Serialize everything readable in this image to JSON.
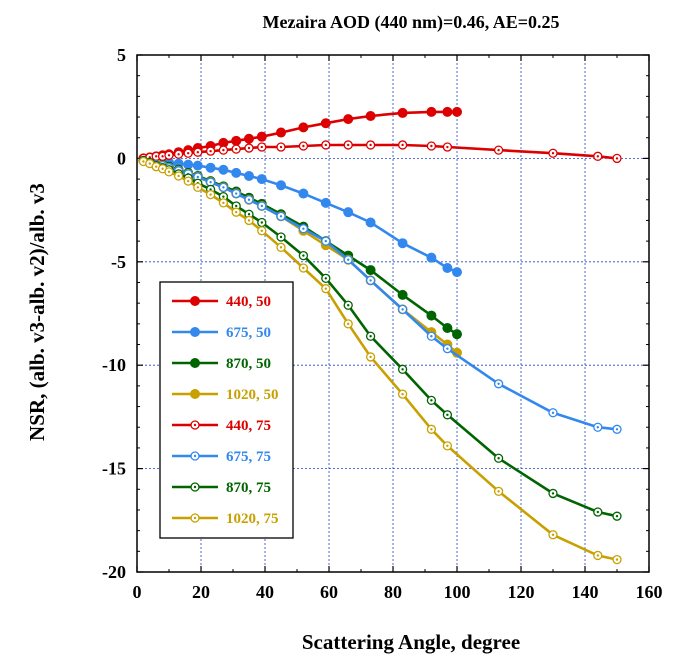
{
  "chart_data": {
    "type": "line",
    "title": "Mezaira AOD (440 nm)=0.46, AE=0.25",
    "xlabel": "Scattering Angle, degree",
    "ylabel": "NSR, (alb. v3-alb. v2)/alb. v3",
    "xlim": [
      0,
      160
    ],
    "ylim": [
      -20,
      5
    ],
    "xticks": [
      "0",
      "20",
      "40",
      "60",
      "80",
      "100",
      "120",
      "140",
      "160"
    ],
    "yticks": [
      "5",
      "0",
      "-5",
      "-10",
      "-15",
      "-20"
    ],
    "grid": true,
    "legend_position": "bottom-left",
    "series": [
      {
        "name": "440, 50",
        "color": "#dd0000",
        "marker": "filled",
        "x": [
          2,
          4,
          6,
          8,
          10,
          13,
          16,
          19,
          23,
          27,
          31,
          35,
          39,
          45,
          52,
          59,
          66,
          73,
          83,
          92,
          97,
          100
        ],
        "y": [
          0.0,
          0.05,
          0.1,
          0.15,
          0.2,
          0.3,
          0.4,
          0.5,
          0.6,
          0.75,
          0.85,
          0.95,
          1.05,
          1.25,
          1.5,
          1.7,
          1.9,
          2.05,
          2.2,
          2.25,
          2.25,
          2.25
        ]
      },
      {
        "name": "675, 50",
        "color": "#3388ee",
        "marker": "filled",
        "x": [
          2,
          4,
          6,
          8,
          10,
          13,
          16,
          19,
          23,
          27,
          31,
          35,
          39,
          45,
          52,
          59,
          66,
          73,
          83,
          92,
          97,
          100
        ],
        "y": [
          -0.1,
          -0.1,
          -0.15,
          -0.15,
          -0.2,
          -0.25,
          -0.3,
          -0.35,
          -0.45,
          -0.55,
          -0.7,
          -0.85,
          -1.0,
          -1.3,
          -1.7,
          -2.15,
          -2.6,
          -3.1,
          -4.1,
          -4.8,
          -5.3,
          -5.5
        ]
      },
      {
        "name": "870, 50",
        "color": "#006400",
        "marker": "filled",
        "x": [
          2,
          4,
          6,
          8,
          10,
          13,
          16,
          19,
          23,
          27,
          31,
          35,
          39,
          45,
          52,
          59,
          66,
          73,
          83,
          92,
          97,
          100
        ],
        "y": [
          -0.1,
          -0.15,
          -0.25,
          -0.3,
          -0.4,
          -0.55,
          -0.7,
          -0.85,
          -1.1,
          -1.35,
          -1.6,
          -1.9,
          -2.2,
          -2.7,
          -3.3,
          -4.0,
          -4.7,
          -5.4,
          -6.6,
          -7.6,
          -8.2,
          -8.5
        ]
      },
      {
        "name": "1020, 50",
        "color": "#c8a000",
        "marker": "filled",
        "x": [
          2,
          4,
          6,
          8,
          10,
          13,
          16,
          19,
          23,
          27,
          31,
          35,
          39,
          45,
          52,
          59,
          66,
          73,
          83,
          92,
          97,
          100
        ],
        "y": [
          -0.1,
          -0.2,
          -0.25,
          -0.35,
          -0.45,
          -0.6,
          -0.75,
          -0.9,
          -1.15,
          -1.4,
          -1.7,
          -2.0,
          -2.3,
          -2.8,
          -3.5,
          -4.2,
          -4.9,
          -5.9,
          -7.3,
          -8.4,
          -9.0,
          -9.4
        ]
      },
      {
        "name": "440, 75",
        "color": "#dd0000",
        "marker": "open",
        "x": [
          2,
          4,
          6,
          8,
          10,
          13,
          16,
          19,
          23,
          27,
          31,
          35,
          39,
          45,
          52,
          59,
          66,
          73,
          83,
          92,
          97,
          113,
          130,
          144,
          150
        ],
        "y": [
          0.0,
          0.05,
          0.1,
          0.1,
          0.15,
          0.2,
          0.25,
          0.3,
          0.35,
          0.4,
          0.45,
          0.5,
          0.55,
          0.55,
          0.6,
          0.65,
          0.65,
          0.65,
          0.65,
          0.6,
          0.55,
          0.4,
          0.25,
          0.1,
          0.0
        ]
      },
      {
        "name": "675, 75",
        "color": "#3388ee",
        "marker": "open",
        "x": [
          2,
          4,
          6,
          8,
          10,
          13,
          16,
          19,
          23,
          27,
          31,
          35,
          39,
          45,
          52,
          59,
          66,
          73,
          83,
          92,
          97,
          113,
          130,
          144,
          150
        ],
        "y": [
          -0.1,
          -0.2,
          -0.3,
          -0.35,
          -0.45,
          -0.6,
          -0.75,
          -0.9,
          -1.15,
          -1.4,
          -1.7,
          -2.0,
          -2.3,
          -2.8,
          -3.4,
          -4.0,
          -4.9,
          -5.9,
          -7.3,
          -8.6,
          -9.2,
          -10.9,
          -12.3,
          -13.0,
          -13.1
        ]
      },
      {
        "name": "870, 75",
        "color": "#006400",
        "marker": "open",
        "x": [
          2,
          4,
          6,
          8,
          10,
          13,
          16,
          19,
          23,
          27,
          31,
          35,
          39,
          45,
          52,
          59,
          66,
          73,
          83,
          92,
          97,
          113,
          130,
          144,
          150
        ],
        "y": [
          -0.1,
          -0.2,
          -0.35,
          -0.45,
          -0.55,
          -0.75,
          -0.95,
          -1.2,
          -1.5,
          -1.85,
          -2.3,
          -2.7,
          -3.1,
          -3.8,
          -4.7,
          -5.8,
          -7.1,
          -8.6,
          -10.2,
          -11.7,
          -12.4,
          -14.5,
          -16.2,
          -17.1,
          -17.3
        ]
      },
      {
        "name": "1020, 75",
        "color": "#c8a000",
        "marker": "open",
        "x": [
          2,
          4,
          6,
          8,
          10,
          13,
          16,
          19,
          23,
          27,
          31,
          35,
          39,
          45,
          52,
          59,
          66,
          73,
          83,
          92,
          97,
          113,
          130,
          144,
          150
        ],
        "y": [
          -0.15,
          -0.25,
          -0.4,
          -0.5,
          -0.65,
          -0.85,
          -1.1,
          -1.4,
          -1.75,
          -2.15,
          -2.6,
          -3.0,
          -3.5,
          -4.3,
          -5.3,
          -6.3,
          -8.0,
          -9.6,
          -11.4,
          -13.1,
          -13.9,
          -16.1,
          -18.2,
          -19.2,
          -19.4
        ]
      }
    ]
  }
}
